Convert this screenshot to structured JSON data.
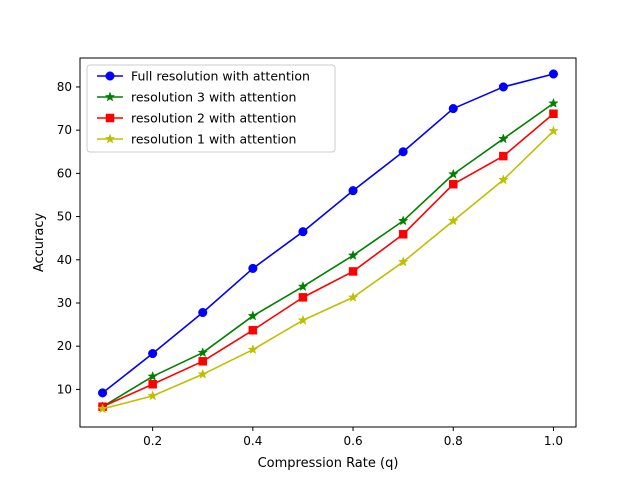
{
  "chart_data": {
    "type": "line",
    "title": "",
    "xlabel": "Compression Rate (q)",
    "ylabel": "Accuracy",
    "xlim": [
      0.055,
      1.045
    ],
    "ylim": [
      1.3,
      86.7
    ],
    "x": [
      0.1,
      0.2,
      0.3,
      0.4,
      0.5,
      0.6,
      0.7,
      0.8,
      0.9,
      1.0
    ],
    "xticks": [
      {
        "value": 0.2,
        "label": "0.2"
      },
      {
        "value": 0.4,
        "label": "0.4"
      },
      {
        "value": 0.6,
        "label": "0.6"
      },
      {
        "value": 0.8,
        "label": "0.8"
      },
      {
        "value": 1.0,
        "label": "1.0"
      }
    ],
    "yticks": [
      {
        "value": 10,
        "label": "10"
      },
      {
        "value": 20,
        "label": "20"
      },
      {
        "value": 30,
        "label": "30"
      },
      {
        "value": 40,
        "label": "40"
      },
      {
        "value": 50,
        "label": "50"
      },
      {
        "value": 60,
        "label": "60"
      },
      {
        "value": 70,
        "label": "70"
      },
      {
        "value": 80,
        "label": "80"
      }
    ],
    "grid": false,
    "legend_position": "top-left",
    "series": [
      {
        "name": "Full resolution with attention",
        "color": "#0000ff",
        "marker": "circle",
        "values": [
          9.2,
          18.3,
          27.8,
          38.0,
          46.5,
          56.0,
          65.0,
          75.0,
          80.0,
          83.0
        ]
      },
      {
        "name": "resolution 3 with attention",
        "color": "#008000",
        "marker": "star",
        "values": [
          6.0,
          13.0,
          18.5,
          27.0,
          33.8,
          41.0,
          49.0,
          59.8,
          68.0,
          76.2
        ]
      },
      {
        "name": "resolution 2 with attention",
        "color": "#ff0000",
        "marker": "square",
        "values": [
          6.0,
          11.2,
          16.5,
          23.7,
          31.3,
          37.3,
          45.9,
          57.5,
          64.0,
          73.8
        ]
      },
      {
        "name": "resolution 1 with attention",
        "color": "#bfbf00",
        "marker": "star",
        "values": [
          5.5,
          8.5,
          13.5,
          19.2,
          26.0,
          31.3,
          39.5,
          49.0,
          58.5,
          69.8
        ]
      }
    ]
  }
}
